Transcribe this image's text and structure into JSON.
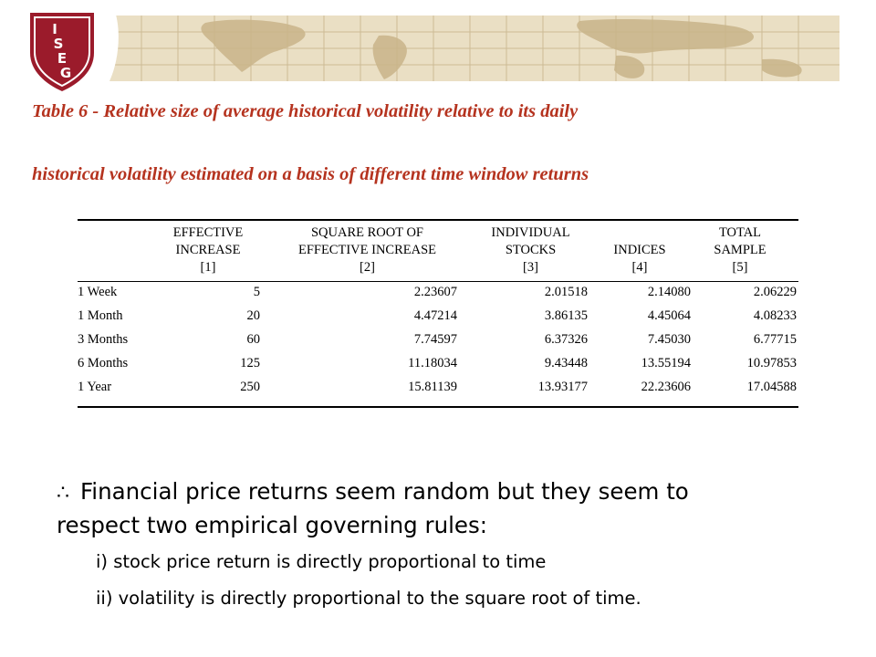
{
  "title": {
    "line1": "Table 6 - Relative size of average historical volatility relative to its daily",
    "line2": "historical volatility estimated on a basis of different time window returns"
  },
  "table": {
    "columns": [
      "EFFECTIVE\nINCREASE\n[1]",
      "SQUARE ROOT OF\nEFFECTIVE INCREASE\n[2]",
      "INDIVIDUAL\nSTOCKS\n[3]",
      "\nINDICES\n[4]",
      "TOTAL\nSAMPLE\n[5]"
    ],
    "rows": [
      {
        "label": "1 Week",
        "c1": "5",
        "c2": "2.23607",
        "c3": "2.01518",
        "c4": "2.14080",
        "c5": "2.06229"
      },
      {
        "label": "1 Month",
        "c1": "20",
        "c2": "4.47214",
        "c3": "3.86135",
        "c4": "4.45064",
        "c5": "4.08233"
      },
      {
        "label": "3 Months",
        "c1": "60",
        "c2": "7.74597",
        "c3": "6.37326",
        "c4": "7.45030",
        "c5": "6.77715"
      },
      {
        "label": "6 Months",
        "c1": "125",
        "c2": "11.18034",
        "c3": "9.43448",
        "c4": "13.55194",
        "c5": "10.97853"
      },
      {
        "label": "1 Year",
        "c1": "250",
        "c2": "15.81139",
        "c3": "13.93177",
        "c4": "22.23606",
        "c5": "17.04588"
      }
    ]
  },
  "bullet": {
    "symbol": "∴",
    "text_line1": "Financial price returns seem random but they seem to",
    "text_line2": "respect two empirical governing rules:"
  },
  "subpoints": [
    "i) stock price return is directly proportional to time",
    "ii) volatility is directly proportional to the square root of time."
  ],
  "logo": {
    "text": "ISEG",
    "color": "#9b1b2b"
  },
  "colors": {
    "title": "#b5331f",
    "banner": "#e9dcc0"
  }
}
